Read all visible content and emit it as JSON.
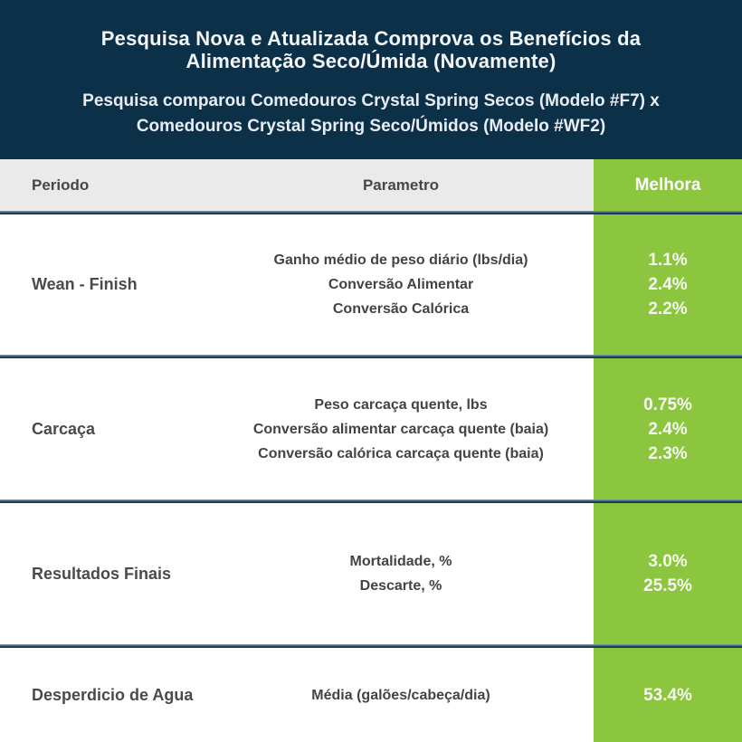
{
  "header": {
    "title_line1": "Pesquisa Nova e Atualizada Comprova os Benefícios da",
    "title_line2": "Alimentação Seco/Úmida (Novamente)",
    "subtitle_line1": "Pesquisa comparou Comedouros Crystal Spring Secos (Modelo #F7) x",
    "subtitle_line2": "Comedouros Crystal Spring Seco/Úmidos (Modelo #WF2)"
  },
  "table": {
    "columns": {
      "period": "Periodo",
      "parameter": "Parametro",
      "improvement": "Melhora"
    },
    "sections": [
      {
        "period": "Wean - Finish",
        "rows": [
          {
            "parameter": "Ganho médio de peso diário (lbs/dia)",
            "improvement": "1.1%"
          },
          {
            "parameter": "Conversão Alimentar",
            "improvement": "2.4%"
          },
          {
            "parameter": "Conversão Calórica",
            "improvement": "2.2%"
          }
        ]
      },
      {
        "period": "Carcaça",
        "rows": [
          {
            "parameter": "Peso carcaça quente, lbs",
            "improvement": "0.75%"
          },
          {
            "parameter": "Conversão alimentar carcaça quente (baia)",
            "improvement": "2.4%"
          },
          {
            "parameter": "Conversão calórica carcaça quente (baia)",
            "improvement": "2.3%"
          }
        ]
      },
      {
        "period": "Resultados Finais",
        "rows": [
          {
            "parameter": "Mortalidade, %",
            "improvement": "3.0%"
          },
          {
            "parameter": "Descarte, %",
            "improvement": "25.5%"
          }
        ]
      },
      {
        "period": "Desperdicio de Agua",
        "rows": [
          {
            "parameter": "Média (galões/cabeça/dia)",
            "improvement": "53.4%"
          }
        ]
      }
    ]
  },
  "colors": {
    "navy_header": "#0d3049",
    "accent_green": "#8cc63f",
    "header_row_gray": "#eaeaea",
    "divider_navy": "#1a3850",
    "body_text": "#434343",
    "value_text": "#ffffff"
  }
}
